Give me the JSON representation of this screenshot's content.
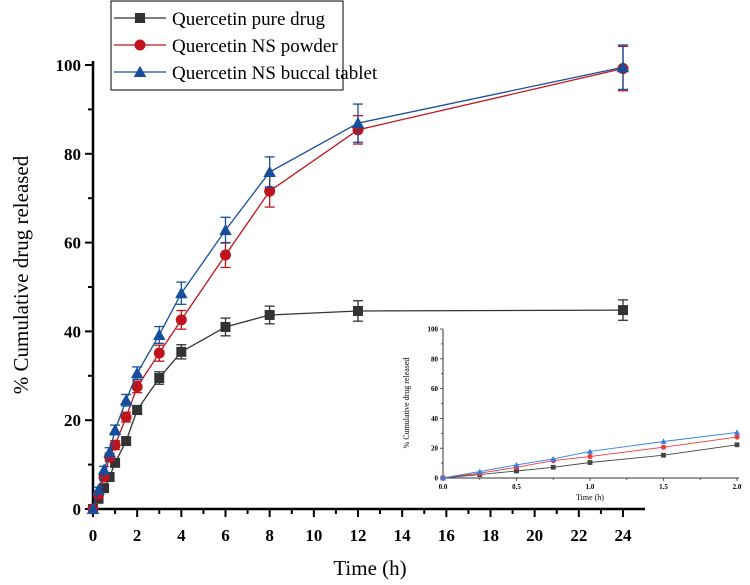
{
  "chart_data": [
    {
      "type": "line",
      "role": "main",
      "title": "",
      "xlabel": "Time (h)",
      "ylabel": "% Cumulative drug released",
      "xlim": [
        0,
        24
      ],
      "ylim": [
        0,
        100
      ],
      "xticks": [
        0,
        2,
        4,
        6,
        8,
        10,
        12,
        14,
        16,
        18,
        20,
        22,
        24
      ],
      "yticks": [
        0,
        20,
        40,
        60,
        80,
        100
      ],
      "grid": false,
      "legend_position": "top-left",
      "x": [
        0,
        0.25,
        0.5,
        0.75,
        1,
        1.5,
        2,
        3,
        4,
        6,
        8,
        12,
        24
      ],
      "series": [
        {
          "name": "Quercetin pure drug",
          "color": "#333333",
          "marker": "square",
          "values": [
            0,
            2.3,
            4.7,
            7.2,
            10.4,
            15.3,
            22.3,
            29.5,
            35.4,
            41.0,
            43.7,
            44.6,
            44.8
          ],
          "errors": [
            0,
            0.5,
            0.6,
            0.7,
            0.8,
            0.9,
            1.0,
            1.4,
            1.6,
            2.0,
            2.0,
            2.3,
            2.3
          ]
        },
        {
          "name": "Quercetin NS powder",
          "color": "#c0141c",
          "marker": "circle",
          "values": [
            0,
            3.2,
            7.2,
            11.7,
            14.4,
            20.7,
            27.5,
            35.1,
            42.6,
            57.2,
            71.6,
            85.4,
            99.2
          ],
          "errors": [
            0,
            0.6,
            0.7,
            0.9,
            1.0,
            1.1,
            1.3,
            1.8,
            2.1,
            2.8,
            3.6,
            3.2,
            5.0
          ]
        },
        {
          "name": "Quercetin NS buccal tablet",
          "color": "#164e9c",
          "marker": "triangle",
          "values": [
            0,
            4.3,
            8.8,
            12.8,
            17.8,
            24.5,
            30.6,
            39.2,
            48.6,
            62.8,
            75.9,
            86.9,
            99.5
          ],
          "errors": [
            0,
            0.6,
            0.8,
            1.0,
            1.1,
            1.3,
            1.4,
            1.9,
            2.5,
            2.9,
            3.4,
            4.3,
            5.0
          ]
        }
      ]
    },
    {
      "type": "line",
      "role": "inset",
      "title": "",
      "xlabel": "Time (h)",
      "ylabel": "% Cumulative drug released",
      "xlim": [
        0,
        2
      ],
      "ylim": [
        0,
        100
      ],
      "xticks": [
        "0.0",
        "0.5",
        "1.0",
        "1.5",
        "2.0"
      ],
      "yticks": [
        0,
        20,
        40,
        60,
        80,
        100
      ],
      "grid": false,
      "x": [
        0,
        0.25,
        0.5,
        0.75,
        1,
        1.5,
        2
      ],
      "series": [
        {
          "name": "Quercetin pure drug",
          "color": "#444444",
          "marker": "square",
          "values": [
            0,
            2.3,
            4.7,
            7.2,
            10.4,
            15.3,
            22.3
          ]
        },
        {
          "name": "Quercetin NS powder",
          "color": "#ee3b3b",
          "marker": "circle",
          "values": [
            0,
            3.2,
            7.2,
            11.7,
            14.4,
            20.7,
            27.5
          ]
        },
        {
          "name": "Quercetin NS buccal tablet",
          "color": "#2f7fe6",
          "marker": "triangle",
          "values": [
            0,
            4.3,
            8.8,
            12.8,
            17.8,
            24.5,
            30.6
          ]
        }
      ]
    }
  ]
}
